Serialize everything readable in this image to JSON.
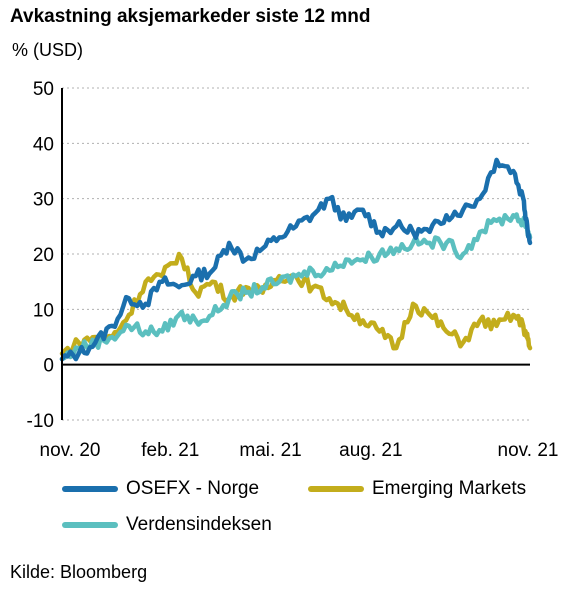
{
  "chart_data": {
    "type": "line",
    "title": "Avkastning aksjemarkeder siste 12 mnd",
    "ylabel": "% (USD)",
    "xlabel": "",
    "x_ticks": [
      "nov. 20",
      "feb. 21",
      "mai. 21",
      "aug. 21",
      "nov. 21"
    ],
    "y_ticks": [
      "50",
      "40",
      "30",
      "20",
      "10",
      "0",
      "-10"
    ],
    "ylim": [
      -10,
      50
    ],
    "grid": "horizontal dotted",
    "legend_position": "bottom",
    "x_months": [
      0,
      0.5,
      1,
      1.5,
      2,
      2.5,
      3,
      3.5,
      4,
      4.5,
      5,
      5.5,
      6,
      6.5,
      7,
      7.5,
      8,
      8.5,
      9,
      9.5,
      10,
      10.5,
      11,
      11.5,
      12,
      12.5,
      13,
      13.5,
      13.8,
      13.9,
      14
    ],
    "series": [
      {
        "name": "OSEFX - Norge",
        "color": "#1a6fad",
        "values": [
          1,
          2,
          4,
          7,
          12,
          11,
          15,
          14,
          16,
          17,
          22,
          19,
          21,
          23,
          25,
          27,
          30,
          26,
          28,
          24,
          25,
          24,
          24,
          27,
          28,
          30,
          37,
          35,
          30,
          26,
          22
        ]
      },
      {
        "name": "Emerging Markets",
        "color": "#c3ad1c",
        "values": [
          2,
          4,
          5,
          5,
          9,
          15,
          16,
          20,
          13,
          15,
          12,
          14,
          13,
          16,
          16,
          14,
          12,
          10,
          8,
          6,
          3,
          11,
          9,
          6,
          4,
          8,
          7,
          9,
          7,
          5,
          3
        ]
      },
      {
        "name": "Verdensindeksen",
        "color": "#5bbfbf",
        "values": [
          1,
          3,
          4,
          5,
          7,
          6,
          6,
          9,
          8,
          9,
          12,
          13,
          14,
          15,
          16,
          17,
          17,
          19,
          19,
          20,
          21,
          22,
          22,
          22,
          20,
          24,
          26,
          27,
          26,
          25,
          23
        ]
      }
    ]
  },
  "source": "Kilde: Bloomberg"
}
